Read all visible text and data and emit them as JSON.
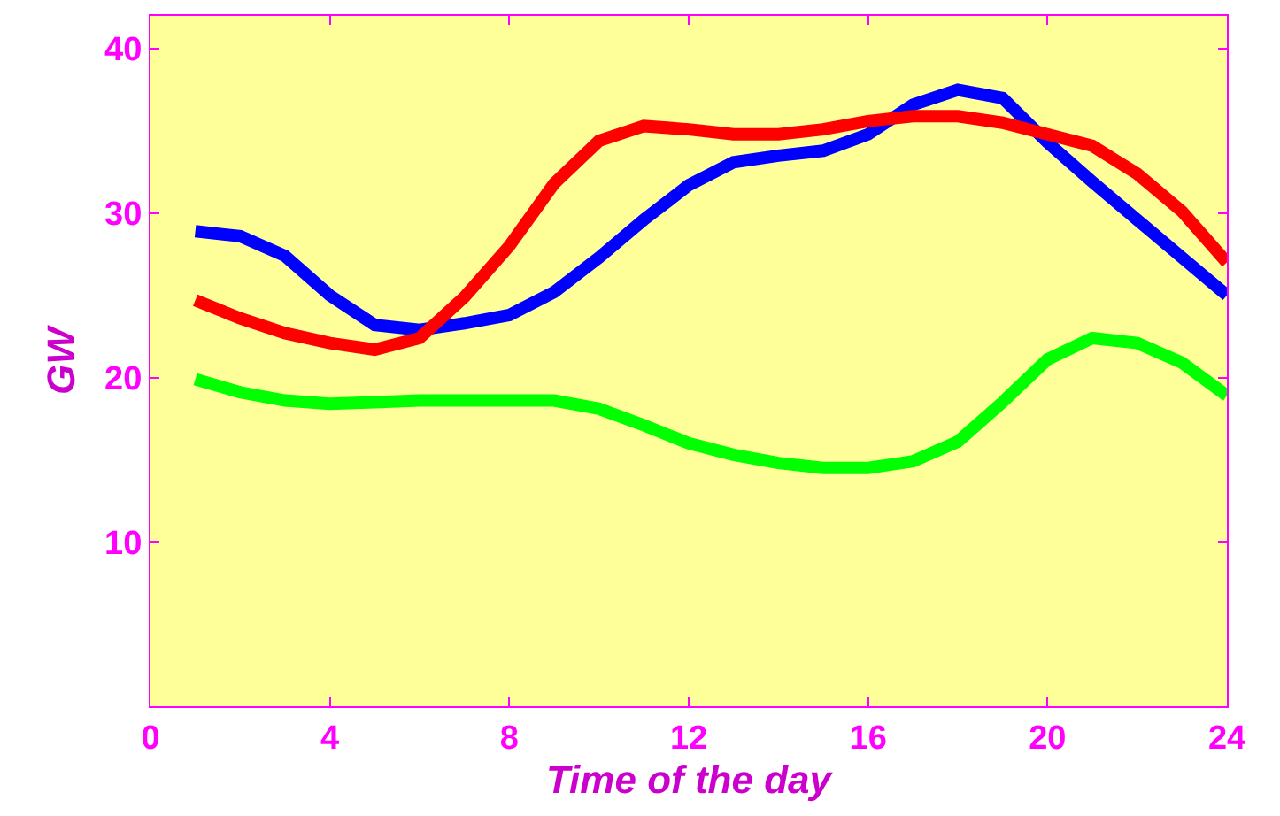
{
  "chart_data": {
    "type": "line",
    "xlabel": "Time of the day",
    "ylabel": "GW",
    "x": [
      1,
      2,
      3,
      4,
      5,
      6,
      7,
      8,
      9,
      10,
      11,
      12,
      13,
      14,
      15,
      16,
      17,
      18,
      19,
      20,
      21,
      22,
      23,
      24
    ],
    "series": [
      {
        "color": "#0000ff",
        "values": [
          28.9,
          28.6,
          27.4,
          25.0,
          23.2,
          22.9,
          23.3,
          23.8,
          25.2,
          27.3,
          29.6,
          31.7,
          33.1,
          33.5,
          33.8,
          34.8,
          36.6,
          37.5,
          37.0,
          34.3,
          31.9,
          29.6,
          27.3,
          25.0
        ]
      },
      {
        "color": "#ff0000",
        "values": [
          24.7,
          23.6,
          22.7,
          22.1,
          21.7,
          22.4,
          24.9,
          28.0,
          31.8,
          34.4,
          35.3,
          35.1,
          34.8,
          34.8,
          35.1,
          35.6,
          35.9,
          35.9,
          35.5,
          34.8,
          34.1,
          32.4,
          30.1,
          27.0
        ]
      },
      {
        "color": "#00ff00",
        "values": [
          19.9,
          19.1,
          18.6,
          18.4,
          18.5,
          18.6,
          18.6,
          18.6,
          18.6,
          18.1,
          17.1,
          16.0,
          15.3,
          14.8,
          14.5,
          14.5,
          14.9,
          16.1,
          18.5,
          21.1,
          22.4,
          22.1,
          20.9,
          18.9
        ]
      }
    ],
    "xlim": [
      0,
      24
    ],
    "xticks": [
      0,
      4,
      8,
      12,
      16,
      20,
      24
    ],
    "ylim": [
      0,
      42
    ],
    "yticks": [
      10,
      20,
      30,
      40
    ],
    "marker": "none",
    "line_style": "solid"
  }
}
